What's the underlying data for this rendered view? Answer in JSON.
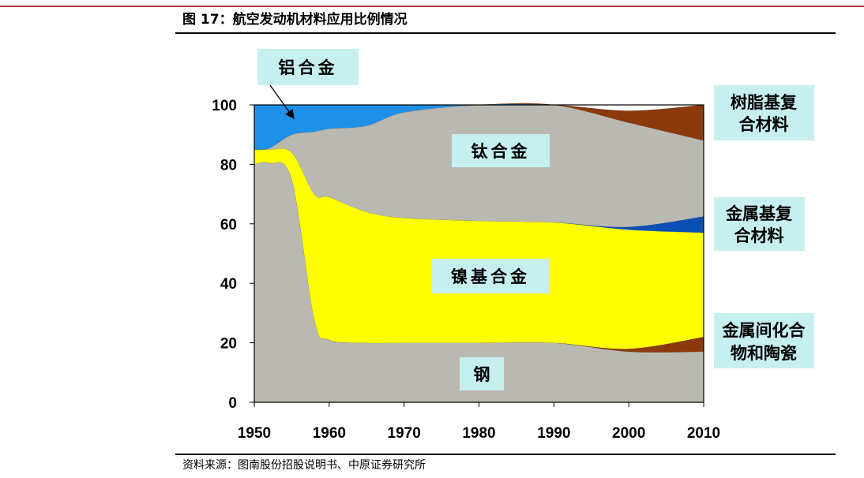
{
  "figure": {
    "title": "图 17：航空发动机材料应用比例情况",
    "source": "资料来源：图南股份招股说明书、中原证券研究所"
  },
  "chart_data": {
    "type": "area",
    "stacked": true,
    "x": [
      1950,
      1952,
      1955,
      1958,
      1960,
      1965,
      1970,
      1980,
      1990,
      2000,
      2010
    ],
    "xlim": [
      1950,
      2010
    ],
    "ylim": [
      0,
      100
    ],
    "xticks": [
      "1950",
      "1960",
      "1970",
      "1980",
      "1990",
      "2000",
      "2010"
    ],
    "yticks": [
      "0",
      "20",
      "40",
      "60",
      "80",
      "100"
    ],
    "series": [
      {
        "name": "钢",
        "color": "#b9b9b1",
        "values": [
          80,
          80.5,
          75,
          28,
          21,
          20,
          20,
          20,
          20,
          17,
          17
        ]
      },
      {
        "name": "金属间化合物和陶瓷",
        "color": "#8b3a0b",
        "values": [
          0,
          0,
          0,
          0,
          0,
          0,
          0,
          0,
          0,
          1,
          5
        ]
      },
      {
        "name": "镍基合金",
        "color": "#ffff00",
        "values": [
          5,
          4.5,
          9,
          42,
          48,
          44,
          42,
          41,
          40.5,
          40,
          35
        ]
      },
      {
        "name": "金属基复合材料",
        "color": "#0a50b4",
        "values": [
          0,
          0,
          0,
          0,
          0,
          0,
          0,
          0,
          0,
          1,
          5.5
        ]
      },
      {
        "name": "钛合金",
        "color": "#b9b9b1",
        "values": [
          0,
          0.5,
          6,
          21,
          23,
          29,
          35.5,
          39,
          39.5,
          35,
          25.5
        ]
      },
      {
        "name": "树脂基复合材料",
        "color": "#8b3a0b",
        "values": [
          0,
          0,
          0,
          0,
          0,
          0,
          0,
          0,
          0,
          4,
          12
        ]
      },
      {
        "name": "铝合金",
        "color": "#1e90e8",
        "values": [
          15,
          14.5,
          10,
          9,
          8,
          7,
          2.5,
          0,
          0,
          0,
          0
        ]
      }
    ],
    "labels": {
      "aluminum": "铝合金",
      "titanium": "钛合金",
      "nickel": "镍基合金",
      "steel": "钢",
      "resin_l1": "树脂基复",
      "resin_l2": "合材料",
      "mmc_l1": "金属基复",
      "mmc_l2": "合材料",
      "inter_l1": "金属间化合",
      "inter_l2": "物和陶瓷"
    }
  }
}
